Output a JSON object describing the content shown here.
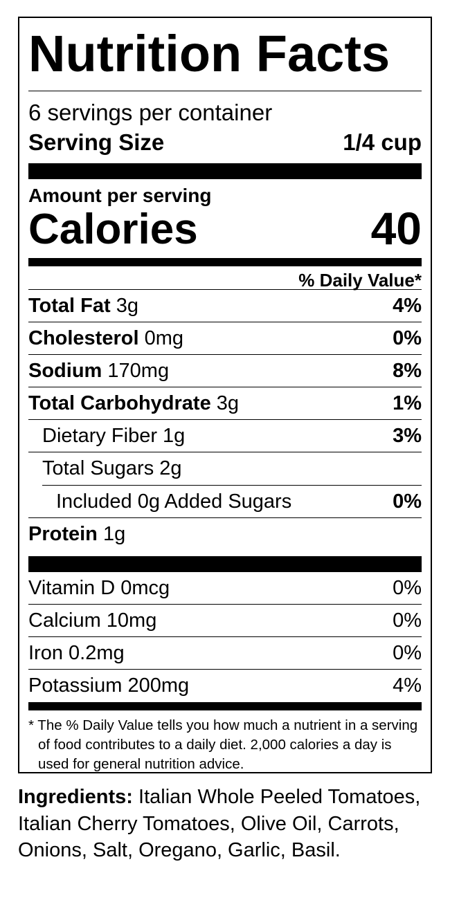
{
  "label": {
    "title": "Nutrition Facts",
    "servings_per_container": "6 servings per container",
    "serving_size_label": "Serving Size",
    "serving_size_value": "1/4 cup",
    "amount_per_serving": "Amount per serving",
    "calories_label": "Calories",
    "calories_value": "40",
    "daily_value_header": "% Daily Value*",
    "nutrients": [
      {
        "name": "Total Fat",
        "amount": "3g",
        "dv": "4%"
      },
      {
        "name": "Cholesterol",
        "amount": "0mg",
        "dv": "0%"
      },
      {
        "name": "Sodium",
        "amount": "170mg",
        "dv": "8%"
      },
      {
        "name": "Total Carbohydrate",
        "amount": "3g",
        "dv": "1%"
      },
      {
        "name": "Dietary Fiber 1g",
        "dv": "3%"
      },
      {
        "name": "Total Sugars 2g",
        "dv": ""
      },
      {
        "name": "Included 0g Added Sugars",
        "dv": "0%"
      },
      {
        "name": "Protein",
        "amount": "1g",
        "dv": ""
      }
    ],
    "vitamins": [
      {
        "name": "Vitamin D 0mcg",
        "dv": "0%"
      },
      {
        "name": "Calcium 10mg",
        "dv": "0%"
      },
      {
        "name": "Iron 0.2mg",
        "dv": "0%"
      },
      {
        "name": "Potassium 200mg",
        "dv": "4%"
      }
    ],
    "footnote": "* The % Daily Value tells you how much a nutrient in a serving of food contributes to a daily diet. 2,000 calories a day is used for general nutrition advice."
  },
  "ingredients": {
    "label": "Ingredients:",
    "text": " Italian Whole Peeled Tomatoes, Italian Cherry Tomatoes, Olive Oil, Carrots, Onions, Salt, Oregano, Garlic, Basil."
  }
}
